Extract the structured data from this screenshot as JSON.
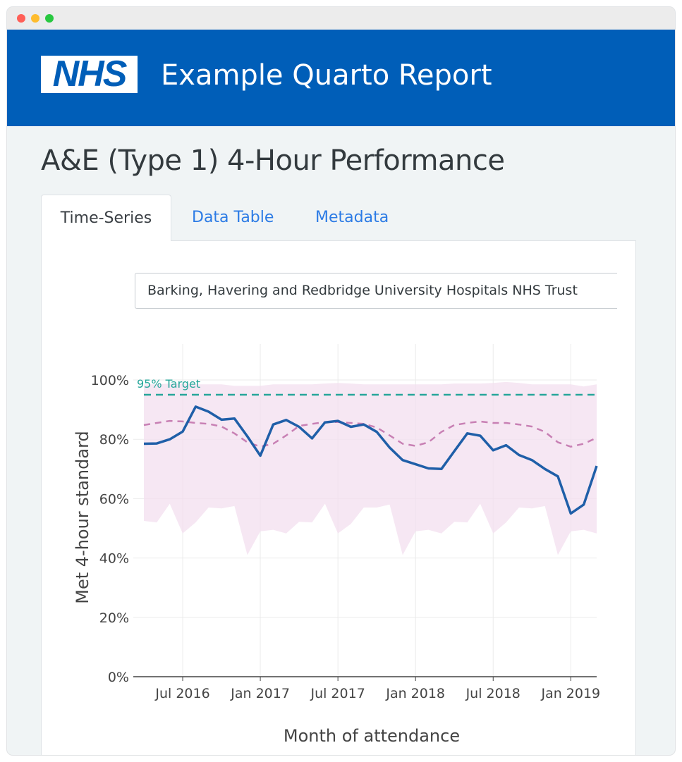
{
  "window": {
    "controls": [
      "close",
      "minimize",
      "maximize"
    ]
  },
  "header": {
    "logo_text": "NHS",
    "report_title": "Example Quarto Report",
    "brand_color": "#005eb8"
  },
  "page": {
    "title": "A&E (Type 1) 4-Hour Performance"
  },
  "tabs": [
    {
      "label": "Time-Series",
      "active": true
    },
    {
      "label": "Data Table",
      "active": false
    },
    {
      "label": "Metadata",
      "active": false
    }
  ],
  "trust_select": {
    "value": "Barking, Havering and Redbridge University Hospitals NHS Trust"
  },
  "chart_data": {
    "type": "line",
    "xlabel": "Month of attendance",
    "ylabel": "Met 4-hour standard",
    "x_range": [
      "2016-04",
      "2019-03"
    ],
    "ylim": [
      0,
      1
    ],
    "x_ticks": [
      "Jul 2016",
      "Jan 2017",
      "Jul 2017",
      "Jan 2018",
      "Jul 2018",
      "Jan 2019"
    ],
    "y_ticks": [
      "0%",
      "20%",
      "40%",
      "60%",
      "80%",
      "100%"
    ],
    "grid": true,
    "target": {
      "label": "95% Target",
      "value": 0.95,
      "color": "#26a69a"
    },
    "x": [
      "2016-04",
      "2016-05",
      "2016-06",
      "2016-07",
      "2016-08",
      "2016-09",
      "2016-10",
      "2016-11",
      "2016-12",
      "2017-01",
      "2017-02",
      "2017-03",
      "2017-04",
      "2017-05",
      "2017-06",
      "2017-07",
      "2017-08",
      "2017-09",
      "2017-10",
      "2017-11",
      "2017-12",
      "2018-01",
      "2018-02",
      "2018-03",
      "2018-04",
      "2018-05",
      "2018-06",
      "2018-07",
      "2018-08",
      "2018-09",
      "2018-10",
      "2018-11",
      "2018-12",
      "2019-01",
      "2019-02",
      "2019-03"
    ],
    "series": [
      {
        "role": "trust",
        "color": "#1f5fa8",
        "values": [
          0.785,
          0.786,
          0.8,
          0.826,
          0.91,
          0.893,
          0.866,
          0.87,
          0.81,
          0.745,
          0.85,
          0.865,
          0.842,
          0.803,
          0.857,
          0.862,
          0.842,
          0.85,
          0.825,
          0.772,
          0.73,
          0.716,
          0.702,
          0.7,
          0.76,
          0.82,
          0.812,
          0.763,
          0.78,
          0.747,
          0.73,
          0.7,
          0.675,
          0.55,
          0.58,
          0.71
        ]
      },
      {
        "role": "national",
        "color": "#c880b4",
        "values": [
          0.848,
          0.855,
          0.862,
          0.86,
          0.855,
          0.852,
          0.843,
          0.82,
          0.79,
          0.775,
          0.785,
          0.813,
          0.845,
          0.852,
          0.858,
          0.858,
          0.855,
          0.852,
          0.84,
          0.813,
          0.785,
          0.778,
          0.79,
          0.825,
          0.848,
          0.855,
          0.86,
          0.855,
          0.855,
          0.85,
          0.843,
          0.825,
          0.79,
          0.775,
          0.785,
          0.805
        ]
      },
      {
        "role": "range_max",
        "color": "#f3dfef",
        "values": [
          0.985,
          0.985,
          0.988,
          0.988,
          0.985,
          0.985,
          0.985,
          0.98,
          0.98,
          0.98,
          0.985,
          0.985,
          0.985,
          0.985,
          0.988,
          0.99,
          0.988,
          0.985,
          0.985,
          0.985,
          0.985,
          0.985,
          0.985,
          0.985,
          0.988,
          0.988,
          0.988,
          0.99,
          0.993,
          0.99,
          0.985,
          0.985,
          0.985,
          0.985,
          0.978,
          0.985
        ]
      },
      {
        "role": "range_min",
        "color": "#f3dfef",
        "values": [
          0.525,
          0.52,
          0.583,
          0.483,
          0.52,
          0.57,
          0.567,
          0.575,
          0.41,
          0.49,
          0.495,
          0.483,
          0.522,
          0.52,
          0.583,
          0.483,
          0.515,
          0.57,
          0.57,
          0.58,
          0.41,
          0.49,
          0.495,
          0.483,
          0.522,
          0.52,
          0.583,
          0.483,
          0.52,
          0.57,
          0.567,
          0.575,
          0.41,
          0.49,
          0.495,
          0.483
        ]
      }
    ]
  }
}
